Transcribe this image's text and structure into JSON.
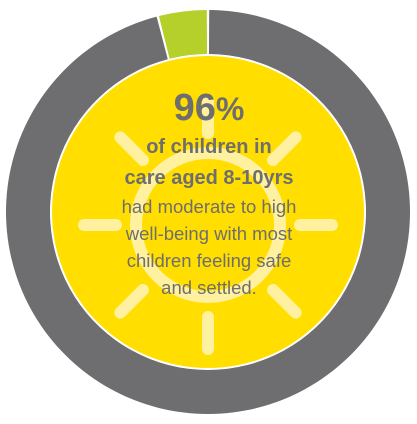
{
  "chart_data": {
    "type": "pie",
    "subtype": "donut",
    "slices": [
      {
        "value": 96,
        "color": "#6e6e70"
      },
      {
        "value": 4,
        "color": "#b5cf2b"
      }
    ],
    "center_fill": "#ffde00",
    "sun_ray_color": "#fff1a0"
  },
  "stat": {
    "value": "96",
    "unit": "%",
    "subject_line1": "of children in",
    "subject_line2": "care aged 8-10yrs",
    "desc_line1": "had moderate to high",
    "desc_line2": "well-being with most",
    "desc_line3": "children feeling safe",
    "desc_line4": "and settled."
  }
}
